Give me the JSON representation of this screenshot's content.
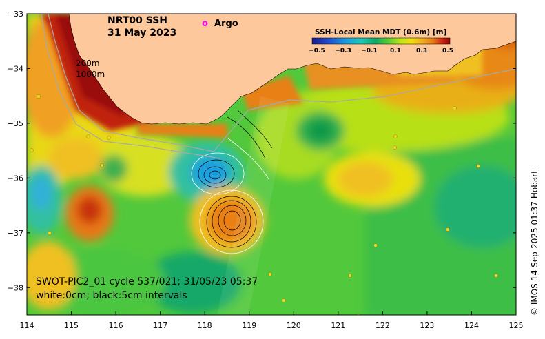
{
  "title": {
    "line1": "NRT00 SSH",
    "line2": "31 May 2023"
  },
  "legend": {
    "argo_symbol": "o",
    "argo_label": "Argo",
    "argo_color": "#ff00ff"
  },
  "colorbar": {
    "label": "SSH-Local Mean MDT (0.6m) [m]",
    "ticks": [
      "−0.5",
      "−0.3",
      "−0.1",
      "0.1",
      "0.3",
      "0.5"
    ],
    "colors": [
      "#1a1a8c",
      "#1f4fd0",
      "#1aa0e0",
      "#20c8b8",
      "#10a868",
      "#40c040",
      "#9ee020",
      "#e8e010",
      "#f0b020",
      "#e87818",
      "#c82010",
      "#8c0a08"
    ]
  },
  "depth_labels": [
    "200m",
    "1000m"
  ],
  "axes": {
    "x_ticks": [
      "114",
      "115",
      "116",
      "117",
      "118",
      "119",
      "120",
      "121",
      "122",
      "123",
      "124",
      "125"
    ],
    "y_ticks": [
      "−33",
      "−34",
      "−35",
      "−36",
      "−37",
      "−38"
    ],
    "x_range": [
      114,
      125
    ],
    "y_range": [
      -38.5,
      -33
    ]
  },
  "annotation": {
    "line1": "SWOT-PIC2_01 cycle 537/021; 31/05/23 05:37",
    "line2": "white:0cm; black:5cm intervals"
  },
  "credit": "© IMOS 14-Sep-2025 01:37 Hobart",
  "colors": {
    "land": "#fcc89c",
    "sea_base": "#5ed03e"
  }
}
